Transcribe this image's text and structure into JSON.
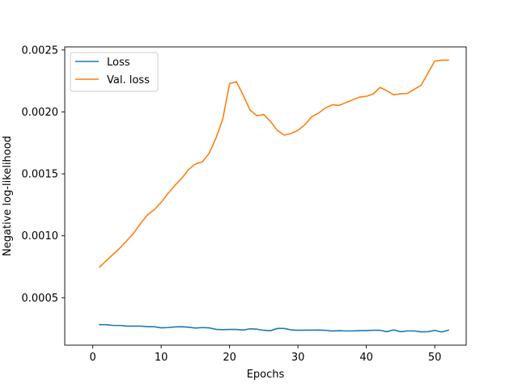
{
  "chart_data": {
    "type": "line",
    "title": "",
    "xlabel": "Epochs",
    "ylabel": "Negative log-likelihood",
    "xlim": [
      -4.1,
      54.6
    ],
    "ylim": [
      0.000117,
      0.002525
    ],
    "x_ticks": [
      0,
      10,
      20,
      30,
      40,
      50
    ],
    "x_tick_labels": [
      "0",
      "10",
      "20",
      "30",
      "40",
      "50"
    ],
    "y_ticks": [
      0.0005,
      0.001,
      0.0015,
      0.002,
      0.0025
    ],
    "y_tick_labels": [
      "0.0005",
      "0.0010",
      "0.0015",
      "0.0020",
      "0.0025"
    ],
    "grid": false,
    "legend_position": "top-left",
    "series": [
      {
        "name": "Loss",
        "color": "#1f77b4",
        "x": [
          1,
          2,
          3,
          4,
          5,
          6,
          7,
          8,
          9,
          10,
          11,
          12,
          13,
          14,
          15,
          16,
          17,
          18,
          19,
          20,
          21,
          22,
          23,
          24,
          25,
          26,
          27,
          28,
          29,
          30,
          31,
          32,
          33,
          34,
          35,
          36,
          37,
          38,
          39,
          40,
          41,
          42,
          43,
          44,
          45,
          46,
          47,
          48,
          49,
          50,
          51,
          52
        ],
        "values": [
          0.000283,
          0.000282,
          0.000276,
          0.000276,
          0.000271,
          0.000271,
          0.000271,
          0.000266,
          0.000266,
          0.000257,
          0.000259,
          0.000264,
          0.000266,
          0.000262,
          0.000255,
          0.000259,
          0.000257,
          0.000245,
          0.000242,
          0.000244,
          0.000244,
          0.000239,
          0.000249,
          0.000246,
          0.000237,
          0.000234,
          0.000252,
          0.000252,
          0.00024,
          0.000237,
          0.000238,
          0.000238,
          0.000239,
          0.000237,
          0.000231,
          0.000234,
          0.000232,
          0.000232,
          0.000234,
          0.000235,
          0.000237,
          0.000237,
          0.000226,
          0.00024,
          0.000226,
          0.000232,
          0.000232,
          0.000224,
          0.000226,
          0.000236,
          0.000223,
          0.000238
        ]
      },
      {
        "name": "Val. loss",
        "color": "#ff7f0e",
        "x": [
          1,
          2,
          3,
          4,
          5,
          6,
          7,
          8,
          9,
          10,
          11,
          12,
          13,
          14,
          15,
          16,
          17,
          18,
          19,
          20,
          21,
          22,
          23,
          24,
          25,
          26,
          27,
          28,
          29,
          30,
          31,
          32,
          33,
          34,
          35,
          36,
          37,
          38,
          39,
          40,
          41,
          42,
          43,
          44,
          45,
          46,
          47,
          48,
          49,
          50,
          51,
          52
        ],
        "values": [
          0.000747,
          0.0008,
          0.000852,
          0.000903,
          0.000962,
          0.001023,
          0.0011,
          0.001169,
          0.001211,
          0.00127,
          0.001342,
          0.001406,
          0.001464,
          0.001534,
          0.00158,
          0.001596,
          0.001665,
          0.001787,
          0.001941,
          0.002228,
          0.002244,
          0.002134,
          0.002015,
          0.001969,
          0.001979,
          0.001922,
          0.001849,
          0.001813,
          0.001826,
          0.001852,
          0.001895,
          0.001961,
          0.00199,
          0.002032,
          0.002057,
          0.002052,
          0.002075,
          0.002098,
          0.00212,
          0.002126,
          0.002144,
          0.002198,
          0.00217,
          0.002139,
          0.002146,
          0.002149,
          0.002182,
          0.002215,
          0.002313,
          0.00241,
          0.002418,
          0.002418
        ]
      }
    ]
  }
}
